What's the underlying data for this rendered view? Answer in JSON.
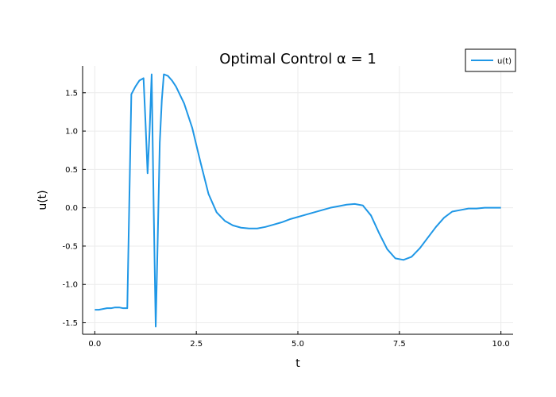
{
  "chart_data": {
    "type": "line",
    "title": "Optimal Control α = 1",
    "xlabel": "t",
    "ylabel": "u(t)",
    "xlim": [
      -0.3,
      10.3
    ],
    "ylim": [
      -1.65,
      1.85
    ],
    "xticks": [
      0.0,
      2.5,
      5.0,
      7.5,
      10.0
    ],
    "xtick_labels": [
      "0.0",
      "2.5",
      "5.0",
      "7.5",
      "10.0"
    ],
    "yticks": [
      -1.5,
      -1.0,
      -0.5,
      0.0,
      0.5,
      1.0,
      1.5
    ],
    "ytick_labels": [
      "-1.5",
      "-1.0",
      "-0.5",
      "0.0",
      "0.5",
      "1.0",
      "1.5"
    ],
    "grid": true,
    "legend_position": "top-right",
    "colors": {
      "series": "#1f97e6"
    },
    "series": [
      {
        "name": "u(t)",
        "x": [
          0.0,
          0.1,
          0.2,
          0.3,
          0.4,
          0.5,
          0.6,
          0.7,
          0.8,
          0.9,
          1.0,
          1.1,
          1.2,
          1.25,
          1.3,
          1.35,
          1.4,
          1.45,
          1.5,
          1.55,
          1.6,
          1.65,
          1.7,
          1.8,
          1.9,
          2.0,
          2.2,
          2.4,
          2.6,
          2.8,
          3.0,
          3.2,
          3.4,
          3.6,
          3.8,
          4.0,
          4.2,
          4.4,
          4.6,
          4.8,
          5.0,
          5.2,
          5.4,
          5.6,
          5.8,
          6.0,
          6.2,
          6.4,
          6.6,
          6.8,
          7.0,
          7.2,
          7.4,
          7.6,
          7.8,
          8.0,
          8.2,
          8.4,
          8.6,
          8.8,
          9.0,
          9.2,
          9.4,
          9.6,
          9.8,
          10.0
        ],
        "y": [
          -1.33,
          -1.33,
          -1.32,
          -1.31,
          -1.31,
          -1.3,
          -1.3,
          -1.31,
          -1.31,
          1.48,
          1.58,
          1.66,
          1.69,
          1.1,
          0.45,
          1.0,
          1.74,
          0.0,
          -1.55,
          -0.4,
          0.85,
          1.4,
          1.74,
          1.72,
          1.66,
          1.58,
          1.36,
          1.04,
          0.6,
          0.18,
          -0.06,
          -0.17,
          -0.23,
          -0.26,
          -0.27,
          -0.27,
          -0.25,
          -0.22,
          -0.19,
          -0.15,
          -0.12,
          -0.09,
          -0.06,
          -0.03,
          0.0,
          0.02,
          0.04,
          0.05,
          0.03,
          -0.1,
          -0.33,
          -0.54,
          -0.66,
          -0.68,
          -0.64,
          -0.53,
          -0.39,
          -0.25,
          -0.13,
          -0.05,
          -0.03,
          -0.01,
          -0.01,
          0.0,
          0.0,
          0.0
        ]
      }
    ]
  }
}
